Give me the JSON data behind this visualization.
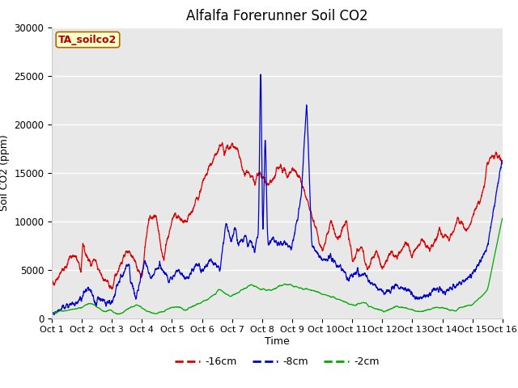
{
  "title": "Alfalfa Forerunner Soil CO2",
  "ylabel": "Soil CO2 (ppm)",
  "xlabel": "Time",
  "xlim": [
    0,
    15
  ],
  "ylim": [
    0,
    30000
  ],
  "yticks": [
    0,
    5000,
    10000,
    15000,
    20000,
    25000,
    30000
  ],
  "xtick_labels": [
    "Oct 1",
    "Oct 2",
    "Oct 3",
    "Oct 4",
    "Oct 5",
    "Oct 6",
    "Oct 7",
    "Oct 8",
    "Oct 9",
    "Oct 10",
    "Oct 11",
    "Oct 12",
    "Oct 13",
    "Oct 14",
    "Oct 15",
    "Oct 16"
  ],
  "legend_label": "TA_soilco2",
  "legend_entries": [
    "-16cm",
    "-8cm",
    "-2cm"
  ],
  "line_colors": [
    "#dd0000",
    "#0000cc",
    "#00aa00"
  ],
  "fig_bg": "#ffffff",
  "plot_bg": "#e8e8e8",
  "grid_color": "#ffffff",
  "title_fontsize": 12,
  "axis_label_fontsize": 9,
  "tick_fontsize": 8.5
}
